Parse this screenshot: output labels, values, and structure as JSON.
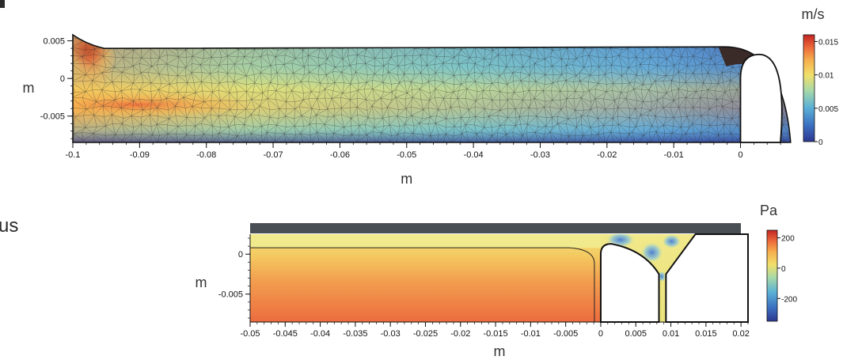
{
  "text_fragments": {
    "left_cut": "us"
  },
  "colors": {
    "jet": [
      "#2c3790",
      "#3b6fc0",
      "#5bb1d6",
      "#a8d9a8",
      "#f1e06a",
      "#f6b04f",
      "#ec6a3a",
      "#c42524"
    ],
    "dark_fill": "#3a2a28",
    "mesh": "#2d2d2d",
    "top_bar": "#4a4f55"
  },
  "chart_data": [
    {
      "type": "heatmap",
      "quantity": "velocity",
      "unit_label": "m/s",
      "xlabel": "m",
      "ylabel": "m",
      "xlim": [
        -0.1,
        0.008
      ],
      "ylim": [
        -0.0085,
        0.0058
      ],
      "x_ticks": [
        "-0.1",
        "-0.09",
        "-0.08",
        "-0.07",
        "-0.06",
        "-0.05",
        "-0.04",
        "-0.03",
        "-0.02",
        "-0.01",
        "0"
      ],
      "x_tick_values": [
        -0.1,
        -0.09,
        -0.08,
        -0.07,
        -0.06,
        -0.05,
        -0.04,
        -0.03,
        -0.02,
        -0.01,
        0
      ],
      "y_ticks": [
        "0.005",
        "0",
        "-0.005"
      ],
      "y_tick_values": [
        0.005,
        0,
        -0.005
      ],
      "colorbar": {
        "ticks": [
          "0.015",
          "0.01",
          "0.005",
          "0"
        ],
        "tick_values": [
          0.015,
          0.01,
          0.005,
          0
        ],
        "range": [
          0,
          0.016
        ]
      },
      "mesh": true
    },
    {
      "type": "heatmap",
      "quantity": "pressure",
      "unit_label": "Pa",
      "xlabel": "m",
      "ylabel": "m",
      "xlim": [
        -0.05,
        0.021
      ],
      "ylim": [
        -0.0085,
        0.0025
      ],
      "x_ticks": [
        "-0.05",
        "-0.045",
        "-0.04",
        "-0.035",
        "-0.03",
        "-0.025",
        "-0.02",
        "-0.015",
        "-0.01",
        "-0.005",
        "0",
        "0.005",
        "0.01",
        "0.015",
        "0.02"
      ],
      "x_tick_values": [
        -0.05,
        -0.045,
        -0.04,
        -0.035,
        -0.03,
        -0.025,
        -0.02,
        -0.015,
        -0.01,
        -0.005,
        0,
        0.005,
        0.01,
        0.015,
        0.02
      ],
      "y_ticks": [
        "0",
        "-0.005"
      ],
      "y_tick_values": [
        0,
        -0.005
      ],
      "colorbar": {
        "ticks": [
          "200",
          "0",
          "-200"
        ],
        "tick_values": [
          200,
          0,
          -200
        ],
        "range": [
          -350,
          250
        ]
      },
      "mesh": false
    }
  ]
}
